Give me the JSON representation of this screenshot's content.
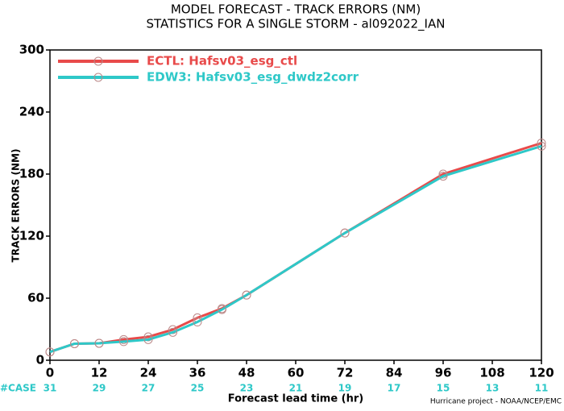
{
  "chart_data": {
    "type": "line",
    "title": "MODEL FORECAST - TRACK ERRORS (NM)",
    "subtitle": "STATISTICS FOR A SINGLE STORM - al092022_IAN",
    "x_label": "Forecast lead time (hr)",
    "y_label": "TRACK ERRORS (NM)",
    "x": [
      0,
      6,
      12,
      18,
      24,
      30,
      36,
      42,
      48,
      72,
      96,
      120
    ],
    "series": [
      {
        "name": "ECTL: Hafsv03_esg_ctl",
        "color": "#e84a4a",
        "values": [
          8,
          16,
          16.4,
          20,
          22.6,
          29.6,
          41,
          50,
          63,
          123,
          180,
          210
        ]
      },
      {
        "name": "EDW3: Hafsv03_esg_dwdz2corr",
        "color": "#2ec8c8",
        "values": [
          8,
          16,
          16.4,
          18,
          20,
          27,
          37,
          49,
          63,
          123,
          178,
          207
        ]
      }
    ],
    "xlim": [
      0,
      120
    ],
    "xticks": [
      0,
      12,
      24,
      36,
      48,
      60,
      72,
      84,
      96,
      108,
      120
    ],
    "ylim": [
      0,
      300
    ],
    "yticks": [
      0,
      60,
      120,
      180,
      240,
      300
    ],
    "case_label": "#CASE",
    "case_x": [
      0,
      12,
      24,
      36,
      48,
      60,
      72,
      84,
      96,
      108,
      120
    ],
    "case_counts": [
      31,
      29,
      27,
      25,
      23,
      21,
      19,
      17,
      15,
      13,
      11
    ],
    "case_color": "#2ec8c8",
    "legend": "upper-left",
    "credit": "Hurricane project - NOAA/NCEP/EMC"
  }
}
